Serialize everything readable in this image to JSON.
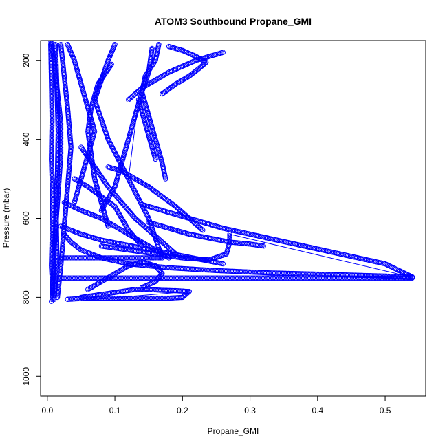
{
  "chart_data": {
    "type": "scatter",
    "title": "ATOM3 Southbound Propane_GMI",
    "xlabel": "Propane_GMI",
    "ylabel": "Pressure (mbar)",
    "xlim": [
      -0.01,
      0.56
    ],
    "ylim": [
      1050,
      150
    ],
    "y_reversed": true,
    "x_ticks": [
      0.0,
      0.1,
      0.2,
      0.3,
      0.4,
      0.5
    ],
    "x_tick_labels": [
      "0.0",
      "0.1",
      "0.2",
      "0.3",
      "0.4",
      "0.5"
    ],
    "y_ticks": [
      200,
      400,
      600,
      800,
      1000
    ],
    "y_tick_labels": [
      "200",
      "400",
      "600",
      "800",
      "1000"
    ],
    "grid": false,
    "marker": "open-circle",
    "color": "#0000ff",
    "series": [
      {
        "x": [
          0.005,
          0.006,
          0.007,
          0.006,
          0.008,
          0.007,
          0.006,
          0.008,
          0.007,
          0.006
        ],
        "y": [
          160,
          250,
          350,
          450,
          550,
          650,
          720,
          780,
          805,
          810
        ]
      },
      {
        "x": [
          0.012,
          0.014,
          0.016,
          0.015,
          0.013,
          0.014,
          0.012,
          0.01
        ],
        "y": [
          160,
          260,
          380,
          480,
          580,
          680,
          760,
          805
        ]
      },
      {
        "x": [
          0.02,
          0.025,
          0.03,
          0.035,
          0.03,
          0.025,
          0.02,
          0.015
        ],
        "y": [
          160,
          240,
          320,
          420,
          520,
          620,
          720,
          800
        ]
      },
      {
        "x": [
          0.03,
          0.04,
          0.05,
          0.06,
          0.07,
          0.06,
          0.05,
          0.04
        ],
        "y": [
          160,
          200,
          260,
          320,
          380,
          440,
          500,
          560
        ]
      },
      {
        "x": [
          0.1,
          0.09,
          0.08,
          0.07,
          0.09,
          0.12,
          0.15,
          0.17
        ],
        "y": [
          160,
          200,
          250,
          300,
          400,
          500,
          600,
          700
        ]
      },
      {
        "x": [
          0.155,
          0.15,
          0.14,
          0.13,
          0.12,
          0.11,
          0.1,
          0.08
        ],
        "y": [
          170,
          230,
          280,
          340,
          400,
          460,
          520,
          580
        ]
      },
      {
        "x": [
          0.165,
          0.16,
          0.145,
          0.14,
          0.15,
          0.16,
          0.17,
          0.175
        ],
        "y": [
          160,
          200,
          240,
          280,
          340,
          400,
          460,
          500
        ]
      },
      {
        "x": [
          0.05,
          0.07,
          0.09,
          0.11,
          0.13,
          0.15,
          0.17,
          0.19
        ],
        "y": [
          420,
          470,
          520,
          560,
          600,
          630,
          660,
          690
        ]
      },
      {
        "x": [
          0.025,
          0.05,
          0.08,
          0.1,
          0.12,
          0.14,
          0.16,
          0.18
        ],
        "y": [
          560,
          580,
          600,
          620,
          640,
          660,
          680,
          700
        ]
      },
      {
        "x": [
          0.02,
          0.05,
          0.08,
          0.11,
          0.14,
          0.17,
          0.2,
          0.23,
          0.26
        ],
        "y": [
          620,
          640,
          655,
          665,
          675,
          685,
          695,
          705,
          715
        ]
      },
      {
        "x": [
          0.025,
          0.035,
          0.05,
          0.08,
          0.12,
          0.18,
          0.25,
          0.33,
          0.42,
          0.5,
          0.54
        ],
        "y": [
          640,
          660,
          680,
          700,
          715,
          725,
          732,
          738,
          742,
          746,
          749
        ]
      },
      {
        "x": [
          0.54,
          0.5,
          0.45,
          0.4,
          0.35,
          0.3,
          0.25,
          0.2,
          0.15,
          0.1,
          0.05,
          0.02
        ],
        "y": [
          751,
          751,
          751,
          751,
          751,
          751,
          751,
          751,
          751,
          751,
          751,
          751
        ]
      },
      {
        "x": [
          0.14,
          0.18,
          0.22,
          0.26,
          0.3,
          0.34,
          0.38,
          0.42,
          0.46,
          0.5,
          0.54
        ],
        "y": [
          565,
          585,
          605,
          625,
          640,
          655,
          670,
          685,
          700,
          715,
          748
        ]
      },
      {
        "x": [
          0.27,
          0.27,
          0.265,
          0.24,
          0.2,
          0.16,
          0.12,
          0.08
        ],
        "y": [
          640,
          660,
          690,
          705,
          700,
          690,
          680,
          670
        ]
      },
      {
        "x": [
          0.03,
          0.06,
          0.09,
          0.12,
          0.15,
          0.18,
          0.2,
          0.21
        ],
        "y": [
          805,
          802,
          802,
          802,
          802,
          802,
          800,
          785
        ]
      },
      {
        "x": [
          0.21,
          0.19,
          0.17,
          0.15,
          0.13,
          0.11,
          0.09,
          0.07,
          0.05
        ],
        "y": [
          785,
          783,
          782,
          780,
          780,
          785,
          790,
          795,
          800
        ]
      },
      {
        "x": [
          0.06,
          0.08,
          0.1,
          0.12,
          0.14,
          0.16,
          0.17,
          0.16,
          0.14
        ],
        "y": [
          780,
          760,
          740,
          720,
          710,
          720,
          740,
          760,
          775
        ]
      },
      {
        "x": [
          0.02,
          0.03,
          0.05,
          0.07,
          0.1,
          0.13,
          0.15,
          0.16,
          0.17
        ],
        "y": [
          700,
          700,
          700,
          700,
          700,
          700,
          700,
          700,
          700
        ]
      },
      {
        "x": [
          0.135,
          0.14,
          0.145,
          0.15,
          0.155,
          0.16
        ],
        "y": [
          300,
          330,
          360,
          390,
          420,
          450
        ]
      },
      {
        "x": [
          0.09,
          0.11,
          0.13,
          0.15,
          0.17,
          0.19,
          0.21,
          0.23
        ],
        "y": [
          470,
          480,
          500,
          520,
          545,
          570,
          600,
          630
        ]
      },
      {
        "x": [
          0.15,
          0.17,
          0.19,
          0.21,
          0.24,
          0.27,
          0.3,
          0.32
        ],
        "y": [
          610,
          620,
          630,
          640,
          650,
          660,
          665,
          670
        ]
      },
      {
        "x": [
          0.04,
          0.06,
          0.08,
          0.1,
          0.11,
          0.12,
          0.13,
          0.14
        ],
        "y": [
          500,
          520,
          545,
          570,
          600,
          630,
          650,
          670
        ]
      },
      {
        "x": [
          0.005,
          0.01,
          0.015,
          0.02,
          0.02,
          0.015,
          0.01,
          0.008
        ],
        "y": [
          150,
          200,
          280,
          360,
          440,
          560,
          680,
          790
        ]
      },
      {
        "x": [
          0.18,
          0.2,
          0.22,
          0.235,
          0.225,
          0.21,
          0.19,
          0.17
        ],
        "y": [
          165,
          175,
          190,
          205,
          220,
          240,
          260,
          285
        ]
      },
      {
        "x": [
          0.26,
          0.24,
          0.22,
          0.2,
          0.18,
          0.16,
          0.14,
          0.12
        ],
        "y": [
          180,
          190,
          200,
          215,
          230,
          250,
          270,
          300
        ]
      },
      {
        "x": [
          0.095,
          0.075,
          0.065,
          0.06,
          0.065,
          0.07,
          0.08,
          0.09
        ],
        "y": [
          210,
          260,
          320,
          380,
          440,
          500,
          560,
          620
        ]
      }
    ],
    "connector_lines": [
      {
        "x": [
          0.135,
          0.12
        ],
        "y": [
          300,
          500
        ]
      },
      {
        "x": [
          0.27,
          0.54
        ],
        "y": [
          640,
          749
        ]
      },
      {
        "x": [
          0.21,
          0.05
        ],
        "y": [
          785,
          808
        ]
      }
    ]
  }
}
